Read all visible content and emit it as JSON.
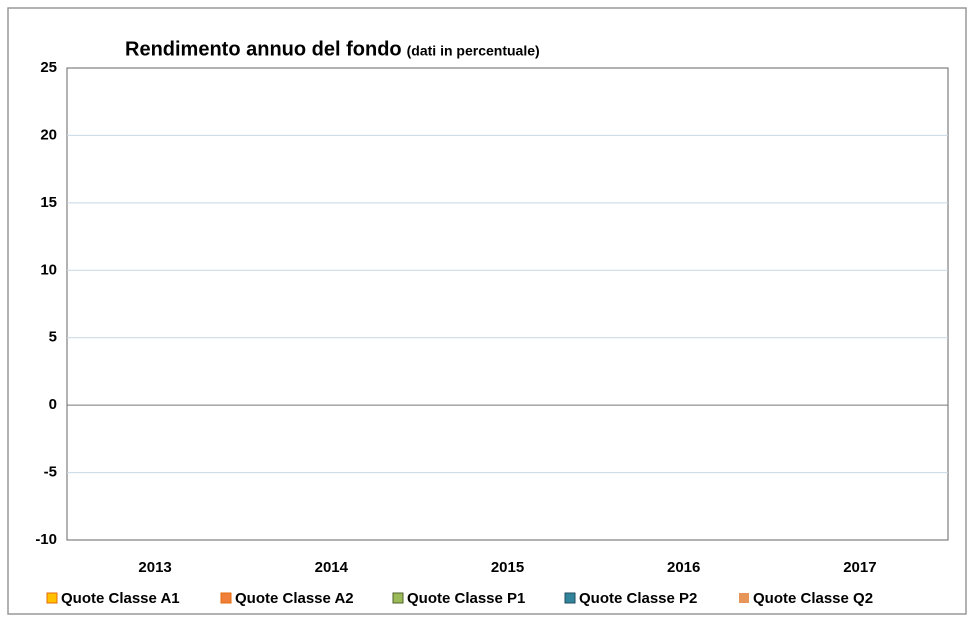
{
  "chart_data": {
    "type": "bar",
    "title": "Rendimento annuo del fondo",
    "subtitle": "(dati in percentuale)",
    "categories": [
      "2013",
      "2014",
      "2015",
      "2016",
      "2017"
    ],
    "series": [
      {
        "name": "Quote Classe A1",
        "color": "#ffc000",
        "values": [
          null,
          null,
          null,
          null,
          null
        ]
      },
      {
        "name": "Quote Classe A2",
        "color": "#f07f3c",
        "values": [
          null,
          null,
          null,
          null,
          null
        ]
      },
      {
        "name": "Quote Classe P1",
        "color": "#9bbb59",
        "values": [
          null,
          null,
          null,
          null,
          null
        ]
      },
      {
        "name": "Quote Classe P2",
        "color": "#31849b",
        "values": [
          null,
          null,
          null,
          null,
          null
        ]
      },
      {
        "name": "Quote Classe Q2",
        "color": "#e8955a",
        "values": [
          null,
          null,
          null,
          null,
          null
        ]
      }
    ],
    "ylim": [
      -10,
      25
    ],
    "yticks": [
      -10,
      -5,
      0,
      5,
      10,
      15,
      20,
      25
    ],
    "grid": true,
    "legend": "bottom"
  }
}
